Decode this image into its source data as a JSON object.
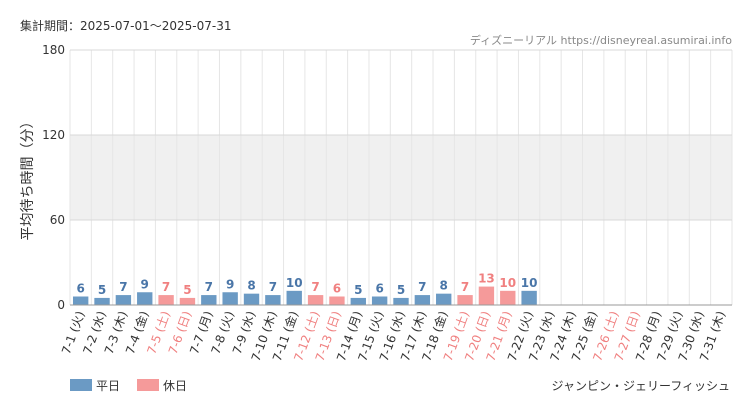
{
  "header": {
    "period_label": "集計期間：2025-07-01～2025-07-31",
    "source_label": "ディズニーリアル https://disneyreal.asumirai.info"
  },
  "footer": {
    "attraction_name": "ジャンピン・ジェリーフィッシュ"
  },
  "colors": {
    "weekday_bar": "#6b9ac4",
    "holiday_bar": "#f59a9a",
    "weekday_text": "#4a76a8",
    "holiday_text": "#f08080",
    "axis_text": "#333333",
    "shade_band": "#f0f0f0",
    "grid": "#e6e6e6"
  },
  "chart_data": {
    "type": "bar",
    "ylabel": "平均待ち時間（分）",
    "ylim": [
      0,
      180
    ],
    "yticks": [
      0,
      60,
      120,
      180
    ],
    "shaded_band": [
      60,
      120
    ],
    "grid": true,
    "legend_position": "bottom-left",
    "legend": [
      {
        "name": "平日",
        "color": "#6b9ac4"
      },
      {
        "name": "休日",
        "color": "#f59a9a"
      }
    ],
    "categories": [
      "7-1 (火)",
      "7-2 (水)",
      "7-3 (木)",
      "7-4 (金)",
      "7-5 (土)",
      "7-6 (日)",
      "7-7 (月)",
      "7-8 (火)",
      "7-9 (水)",
      "7-10 (木)",
      "7-11 (金)",
      "7-12 (土)",
      "7-13 (日)",
      "7-14 (月)",
      "7-15 (火)",
      "7-16 (水)",
      "7-17 (木)",
      "7-18 (金)",
      "7-19 (土)",
      "7-20 (日)",
      "7-21 (月)",
      "7-22 (火)",
      "7-23 (水)",
      "7-24 (木)",
      "7-25 (金)",
      "7-26 (土)",
      "7-27 (日)",
      "7-28 (月)",
      "7-29 (火)",
      "7-30 (水)",
      "7-31 (木)"
    ],
    "holiday": [
      false,
      false,
      false,
      false,
      true,
      true,
      false,
      false,
      false,
      false,
      false,
      true,
      true,
      false,
      false,
      false,
      false,
      false,
      true,
      true,
      true,
      false,
      false,
      false,
      false,
      true,
      true,
      false,
      false,
      false,
      false
    ],
    "values": [
      6,
      5,
      7,
      9,
      7,
      5,
      7,
      9,
      8,
      7,
      10,
      7,
      6,
      5,
      6,
      5,
      7,
      8,
      7,
      13,
      10,
      10,
      null,
      null,
      null,
      null,
      null,
      null,
      null,
      null,
      null
    ]
  }
}
